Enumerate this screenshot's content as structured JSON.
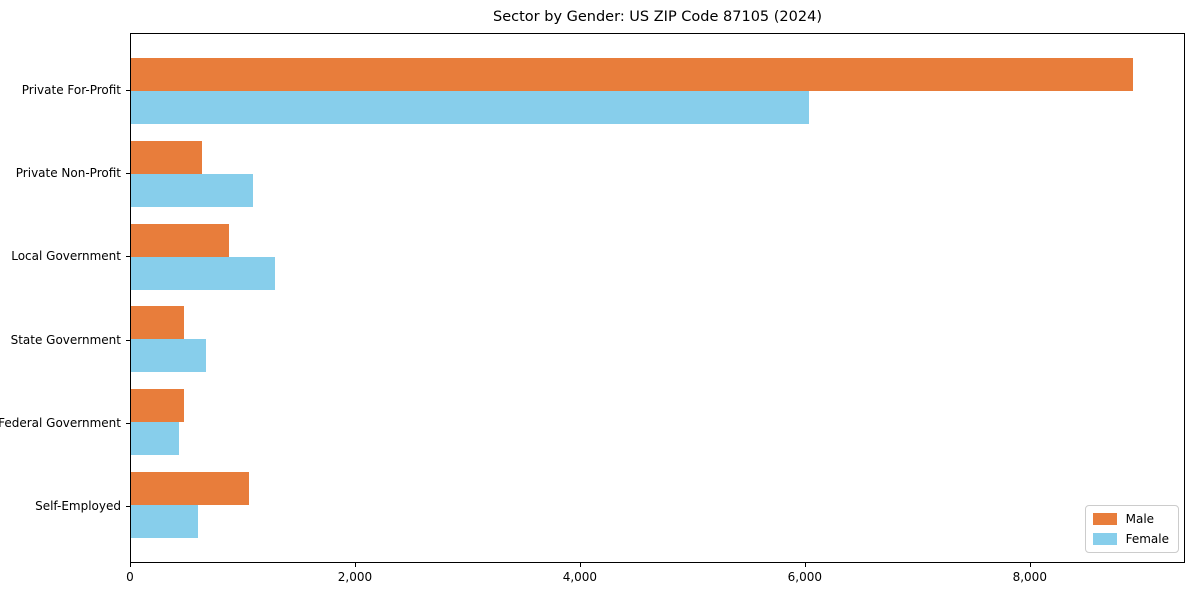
{
  "title": "Sector by Gender: US ZIP Code 87105 (2024)",
  "chart_data": {
    "type": "bar",
    "orientation": "horizontal",
    "title": "Sector by Gender: US ZIP Code 87105 (2024)",
    "xlabel": "",
    "ylabel": "",
    "categories": [
      "Private For-Profit",
      "Private Non-Profit",
      "Local Government",
      "State Government",
      "Federal Government",
      "Self-Employed"
    ],
    "series": [
      {
        "name": "Male",
        "color": "#E87D3B",
        "values": [
          8930,
          630,
          870,
          470,
          470,
          1050
        ]
      },
      {
        "name": "Female",
        "color": "#87CEEB",
        "values": [
          6040,
          1090,
          1280,
          670,
          430,
          600
        ]
      }
    ],
    "xlim": [
      0,
      9380
    ],
    "x_ticks": [
      0,
      2000,
      4000,
      6000,
      8000
    ],
    "x_tick_labels": [
      "0",
      "2,000",
      "4,000",
      "6,000",
      "8,000"
    ],
    "grid": false,
    "legend_position": "lower right"
  },
  "legend": {
    "items": [
      {
        "label": "Male",
        "color": "#E87D3B"
      },
      {
        "label": "Female",
        "color": "#87CEEB"
      }
    ]
  }
}
